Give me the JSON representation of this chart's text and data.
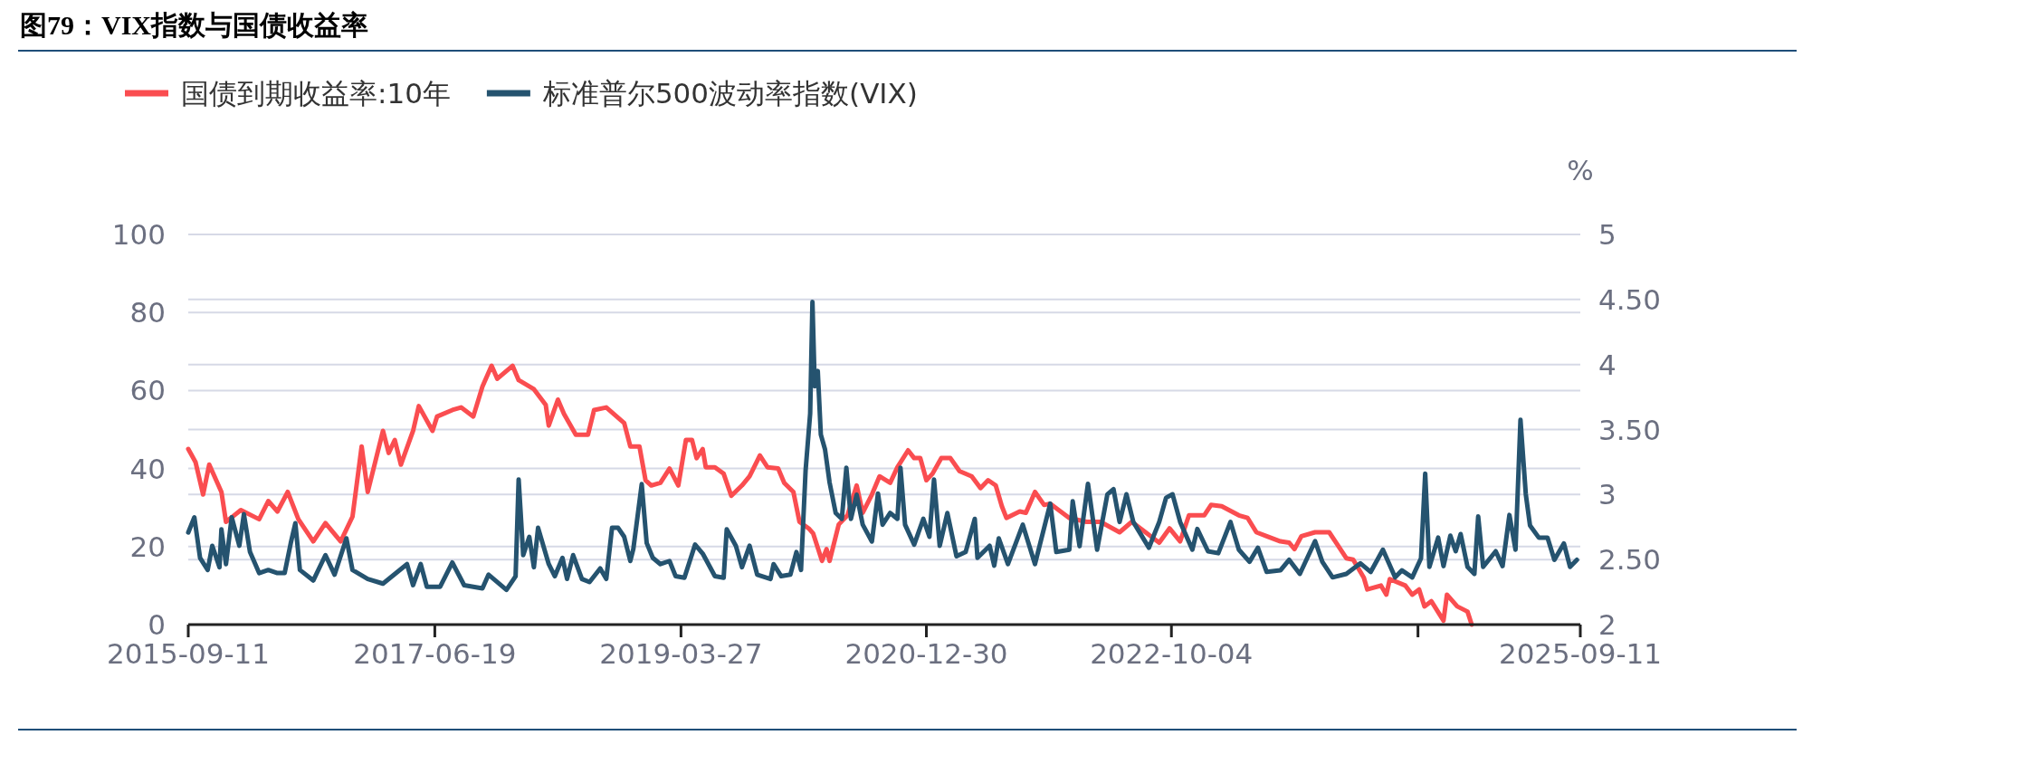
{
  "chart_data": {
    "type": "line",
    "title": "图79：VIX指数与国债收益率",
    "y2label": "%",
    "legend": "top left",
    "grid": "y",
    "line_style": "solid",
    "xlim": [
      "2015-09-11",
      "2025-09-11"
    ],
    "xticks": [
      {
        "value": "2015-09-11",
        "label": "2015-09-11"
      },
      {
        "value": "2017-06-19",
        "label": "2017-06-19"
      },
      {
        "value": "2019-03-27",
        "label": "2019-03-27"
      },
      {
        "value": "2020-12-30",
        "label": "2020-12-30"
      },
      {
        "value": "2022-10-04",
        "label": "2022-10-04"
      },
      {
        "value": "2024-07-12",
        "label": null
      },
      {
        "value": "2025-09-11",
        "label": "2025-09-11"
      }
    ],
    "ylim": [
      0,
      100
    ],
    "yticks": [
      0,
      20,
      40,
      60,
      80,
      100
    ],
    "y2lim": [
      2,
      5
    ],
    "y2ticks": [
      {
        "value": 2,
        "label": "2"
      },
      {
        "value": 2.5,
        "label": "2.50"
      },
      {
        "value": 3,
        "label": "3"
      },
      {
        "value": 3.5,
        "label": "3.50"
      },
      {
        "value": 4,
        "label": "4"
      },
      {
        "value": 4.5,
        "label": "4.50"
      },
      {
        "value": 5,
        "label": "5"
      }
    ],
    "series": [
      {
        "name": "国债到期收益率:10年",
        "color": "#fa4d50",
        "axis": "y2",
        "x": [
          "2015-09-11",
          "2015-09-30",
          "2015-10-20",
          "2015-11-05",
          "2015-12-07",
          "2015-12-19",
          "2016-01-27",
          "2016-03-15",
          "2016-04-08",
          "2016-05-02",
          "2016-05-29",
          "2016-06-26",
          "2016-08-04",
          "2016-09-05",
          "2016-10-15",
          "2016-11-15",
          "2016-12-09",
          "2016-12-25",
          "2017-02-03",
          "2017-02-18",
          "2017-03-06",
          "2017-03-22",
          "2017-04-23",
          "2017-05-08",
          "2017-06-13",
          "2017-06-25",
          "2017-08-04",
          "2017-08-27",
          "2017-09-28",
          "2017-10-22",
          "2017-11-15",
          "2017-11-30",
          "2018-01-09",
          "2018-01-25",
          "2018-03-06",
          "2018-04-06",
          "2018-04-14",
          "2018-05-08",
          "2018-05-24",
          "2018-06-24",
          "2018-07-26",
          "2018-08-11",
          "2018-09-12",
          "2018-10-29",
          "2018-11-14",
          "2018-12-08",
          "2018-12-24",
          "2019-01-08",
          "2019-02-01",
          "2019-02-25",
          "2019-03-20",
          "2019-04-09",
          "2019-04-25",
          "2019-05-07",
          "2019-05-23",
          "2019-05-31",
          "2019-06-24",
          "2019-07-17",
          "2019-08-06",
          "2019-09-03",
          "2019-09-23",
          "2019-10-20",
          "2019-11-09",
          "2019-12-07",
          "2019-12-23",
          "2020-01-16",
          "2020-02-01",
          "2020-02-25",
          "2020-03-08",
          "2020-03-31",
          "2020-04-12",
          "2020-04-20",
          "2020-05-14",
          "2020-06-06",
          "2020-06-30",
          "2020-07-16",
          "2020-08-09",
          "2020-08-29",
          "2020-09-26",
          "2020-10-15",
          "2020-11-12",
          "2020-11-28",
          "2020-12-14",
          "2020-12-30",
          "2021-01-15",
          "2021-02-07",
          "2021-03-03",
          "2021-03-27",
          "2021-04-28",
          "2021-05-21",
          "2021-06-10",
          "2021-06-30",
          "2021-07-16",
          "2021-07-28",
          "2021-09-01",
          "2021-09-17",
          "2021-10-11",
          "2021-11-04",
          "2021-11-20",
          "2022-01-09",
          "2022-02-23",
          "2022-04-01",
          "2022-05-21",
          "2022-06-22",
          "2022-07-28",
          "2022-09-02",
          "2022-09-29",
          "2022-10-27",
          "2022-11-19",
          "2022-12-29",
          "2023-01-16",
          "2023-02-13",
          "2023-03-30",
          "2023-04-22",
          "2023-05-15",
          "2023-06-11",
          "2023-07-17",
          "2023-08-09",
          "2023-08-23",
          "2023-09-10",
          "2023-10-16",
          "2023-11-22",
          "2023-12-10",
          "2024-01-06",
          "2024-01-24",
          "2024-02-21",
          "2024-03-01",
          "2024-04-06",
          "2024-04-20",
          "2024-04-29",
          "2024-06-09",
          "2024-06-27",
          "2024-07-15",
          "2024-07-29",
          "2024-08-16",
          "2024-09-17",
          "2024-09-26",
          "2024-10-23",
          "2024-11-19",
          "2024-11-30"
        ],
        "values": [
          3.35,
          3.25,
          3.0,
          3.23,
          3.02,
          2.79,
          2.88,
          2.81,
          2.95,
          2.87,
          3.02,
          2.81,
          2.64,
          2.78,
          2.64,
          2.83,
          3.37,
          3.02,
          3.49,
          3.32,
          3.42,
          3.23,
          3.49,
          3.68,
          3.49,
          3.6,
          3.65,
          3.67,
          3.6,
          3.83,
          3.99,
          3.89,
          3.99,
          3.88,
          3.81,
          3.69,
          3.53,
          3.73,
          3.62,
          3.46,
          3.46,
          3.65,
          3.67,
          3.55,
          3.37,
          3.37,
          3.11,
          3.07,
          3.09,
          3.2,
          3.07,
          3.42,
          3.42,
          3.28,
          3.35,
          3.21,
          3.21,
          3.16,
          2.99,
          3.07,
          3.14,
          3.3,
          3.21,
          3.2,
          3.09,
          3.02,
          2.79,
          2.74,
          2.7,
          2.49,
          2.58,
          2.49,
          2.77,
          2.84,
          3.07,
          2.86,
          3.0,
          3.14,
          3.09,
          3.21,
          3.34,
          3.28,
          3.28,
          3.11,
          3.16,
          3.28,
          3.28,
          3.18,
          3.14,
          3.05,
          3.11,
          3.07,
          2.91,
          2.82,
          2.87,
          2.86,
          3.02,
          2.92,
          2.93,
          2.82,
          2.79,
          2.79,
          2.71,
          2.79,
          2.71,
          2.63,
          2.74,
          2.64,
          2.84,
          2.84,
          2.92,
          2.91,
          2.84,
          2.82,
          2.71,
          2.68,
          2.64,
          2.63,
          2.58,
          2.68,
          2.71,
          2.71,
          2.63,
          2.51,
          2.5,
          2.36,
          2.27,
          2.3,
          2.23,
          2.35,
          2.3,
          2.23,
          2.27,
          2.14,
          2.18,
          2.03,
          2.23,
          2.14,
          2.1,
          2.0
        ]
      },
      {
        "name": "标准普尔500波动率指数(VIX)",
        "color": "#25536f",
        "x": [
          "2015-09-11",
          "2015-09-27",
          "2015-10-12",
          "2015-11-01",
          "2015-11-13",
          "2015-12-02",
          "2015-12-07",
          "2015-12-19",
          "2016-01-03",
          "2016-01-23",
          "2016-02-04",
          "2016-02-20",
          "2016-03-15",
          "2016-04-08",
          "2016-05-02",
          "2016-05-21",
          "2016-06-06",
          "2016-06-18",
          "2016-06-30",
          "2016-08-04",
          "2016-09-05",
          "2016-09-29",
          "2016-10-30",
          "2016-11-15",
          "2016-12-25",
          "2017-02-03",
          "2017-04-07",
          "2017-04-23",
          "2017-05-13",
          "2017-05-29",
          "2017-07-03",
          "2017-08-04",
          "2017-09-04",
          "2017-10-22",
          "2017-11-07",
          "2017-12-24",
          "2018-01-17",
          "2018-01-25",
          "2018-02-06",
          "2018-02-22",
          "2018-03-06",
          "2018-03-17",
          "2018-04-14",
          "2018-04-30",
          "2018-05-20",
          "2018-06-01",
          "2018-06-17",
          "2018-07-10",
          "2018-07-30",
          "2018-08-27",
          "2018-09-12",
          "2018-09-27",
          "2018-10-13",
          "2018-10-29",
          "2018-11-14",
          "2018-11-22",
          "2018-12-14",
          "2018-12-27",
          "2019-01-12",
          "2019-02-01",
          "2019-02-25",
          "2019-03-13",
          "2019-04-05",
          "2019-05-03",
          "2019-05-23",
          "2019-06-24",
          "2019-07-17",
          "2019-07-25",
          "2019-08-18",
          "2019-09-03",
          "2019-09-23",
          "2019-10-13",
          "2019-11-17",
          "2019-11-25",
          "2019-12-15",
          "2020-01-08",
          "2020-01-24",
          "2020-02-05",
          "2020-02-17",
          "2020-02-29",
          "2020-03-06",
          "2020-03-12",
          "2020-03-20",
          "2020-03-28",
          "2020-04-08",
          "2020-04-20",
          "2020-05-06",
          "2020-05-22",
          "2020-06-03",
          "2020-06-15",
          "2020-06-30",
          "2020-07-16",
          "2020-08-09",
          "2020-08-25",
          "2020-09-06",
          "2020-09-26",
          "2020-10-15",
          "2020-10-23",
          "2020-11-04",
          "2020-11-28",
          "2020-12-22",
          "2021-01-07",
          "2021-01-19",
          "2021-02-03",
          "2021-02-23",
          "2021-03-19",
          "2021-04-12",
          "2021-05-06",
          "2021-05-13",
          "2021-06-14",
          "2021-06-26",
          "2021-07-08",
          "2021-08-01",
          "2021-09-09",
          "2021-10-11",
          "2021-11-20",
          "2021-12-06",
          "2022-01-09",
          "2022-01-18",
          "2022-02-05",
          "2022-02-27",
          "2022-03-23",
          "2022-04-19",
          "2022-05-05",
          "2022-05-21",
          "2022-06-08",
          "2022-06-26",
          "2022-08-06",
          "2022-09-02",
          "2022-09-20",
          "2022-10-07",
          "2022-10-27",
          "2022-11-28",
          "2022-12-11",
          "2023-01-08",
          "2023-02-04",
          "2023-03-08",
          "2023-03-30",
          "2023-04-27",
          "2023-05-19",
          "2023-06-11",
          "2023-07-17",
          "2023-08-09",
          "2023-09-06",
          "2023-10-16",
          "2023-11-04",
          "2023-12-01",
          "2024-01-06",
          "2024-02-12",
          "2024-03-10",
          "2024-04-11",
          "2024-05-13",
          "2024-05-31",
          "2024-06-27",
          "2024-07-20",
          "2024-07-31",
          "2024-08-11",
          "2024-09-03",
          "2024-09-17",
          "2024-10-05",
          "2024-10-19",
          "2024-11-01",
          "2024-11-19",
          "2024-12-07",
          "2024-12-17",
          "2024-12-30",
          "2025-02-01",
          "2025-02-19",
          "2025-03-09",
          "2025-03-25",
          "2025-04-07",
          "2025-04-21",
          "2025-05-02",
          "2025-05-25",
          "2025-06-17",
          "2025-07-05",
          "2025-07-30",
          "2025-08-15",
          "2025-09-02"
        ],
        "values": [
          23.6,
          27.5,
          17.1,
          14.0,
          20.2,
          14.7,
          24.4,
          15.5,
          27.5,
          20.2,
          28.3,
          18.6,
          13.2,
          14.0,
          13.2,
          13.2,
          20.9,
          26.0,
          14.0,
          11.3,
          17.8,
          12.8,
          22.1,
          14.0,
          11.7,
          10.5,
          15.5,
          10.1,
          15.5,
          9.7,
          9.7,
          15.9,
          10.1,
          9.3,
          12.8,
          8.9,
          12.4,
          37.2,
          17.8,
          22.5,
          14.7,
          24.8,
          15.5,
          12.4,
          17.1,
          11.7,
          17.8,
          11.7,
          10.9,
          14.4,
          11.7,
          24.8,
          24.8,
          22.5,
          16.3,
          19.4,
          36.0,
          20.9,
          17.1,
          15.5,
          16.3,
          12.4,
          12.0,
          20.5,
          18.2,
          12.4,
          12.0,
          24.4,
          20.2,
          14.7,
          20.2,
          12.8,
          11.7,
          15.5,
          12.4,
          12.8,
          18.6,
          14.0,
          39.5,
          54.1,
          82.7,
          61.1,
          65.0,
          48.7,
          44.9,
          36.4,
          28.6,
          27.1,
          40.2,
          27.1,
          33.3,
          25.6,
          21.3,
          33.6,
          25.6,
          28.6,
          27.1,
          40.2,
          25.6,
          20.5,
          27.1,
          22.5,
          37.2,
          20.2,
          28.6,
          17.5,
          18.6,
          27.1,
          17.1,
          20.2,
          15.1,
          22.1,
          15.5,
          25.6,
          15.5,
          31.0,
          18.6,
          19.2,
          31.6,
          20.1,
          36.1,
          19.2,
          33.4,
          34.7,
          26.3,
          33.4,
          26.3,
          19.7,
          26.3,
          32.5,
          33.4,
          26.3,
          19.2,
          24.5,
          18.8,
          18.3,
          26.3,
          19.2,
          16.1,
          19.7,
          13.5,
          13.9,
          16.6,
          13.0,
          21.4,
          16.1,
          12.1,
          13.0,
          15.7,
          13.5,
          19.2,
          12.1,
          13.9,
          12.1,
          17.0,
          38.7,
          14.8,
          22.3,
          15.0,
          22.8,
          18.8,
          23.2,
          14.8,
          13.0,
          27.7,
          14.8,
          18.8,
          15.0,
          28.1,
          19.2,
          52.5,
          33.4,
          25.4,
          22.3,
          22.3,
          16.6,
          20.8,
          14.8,
          16.6
        ]
      }
    ]
  }
}
